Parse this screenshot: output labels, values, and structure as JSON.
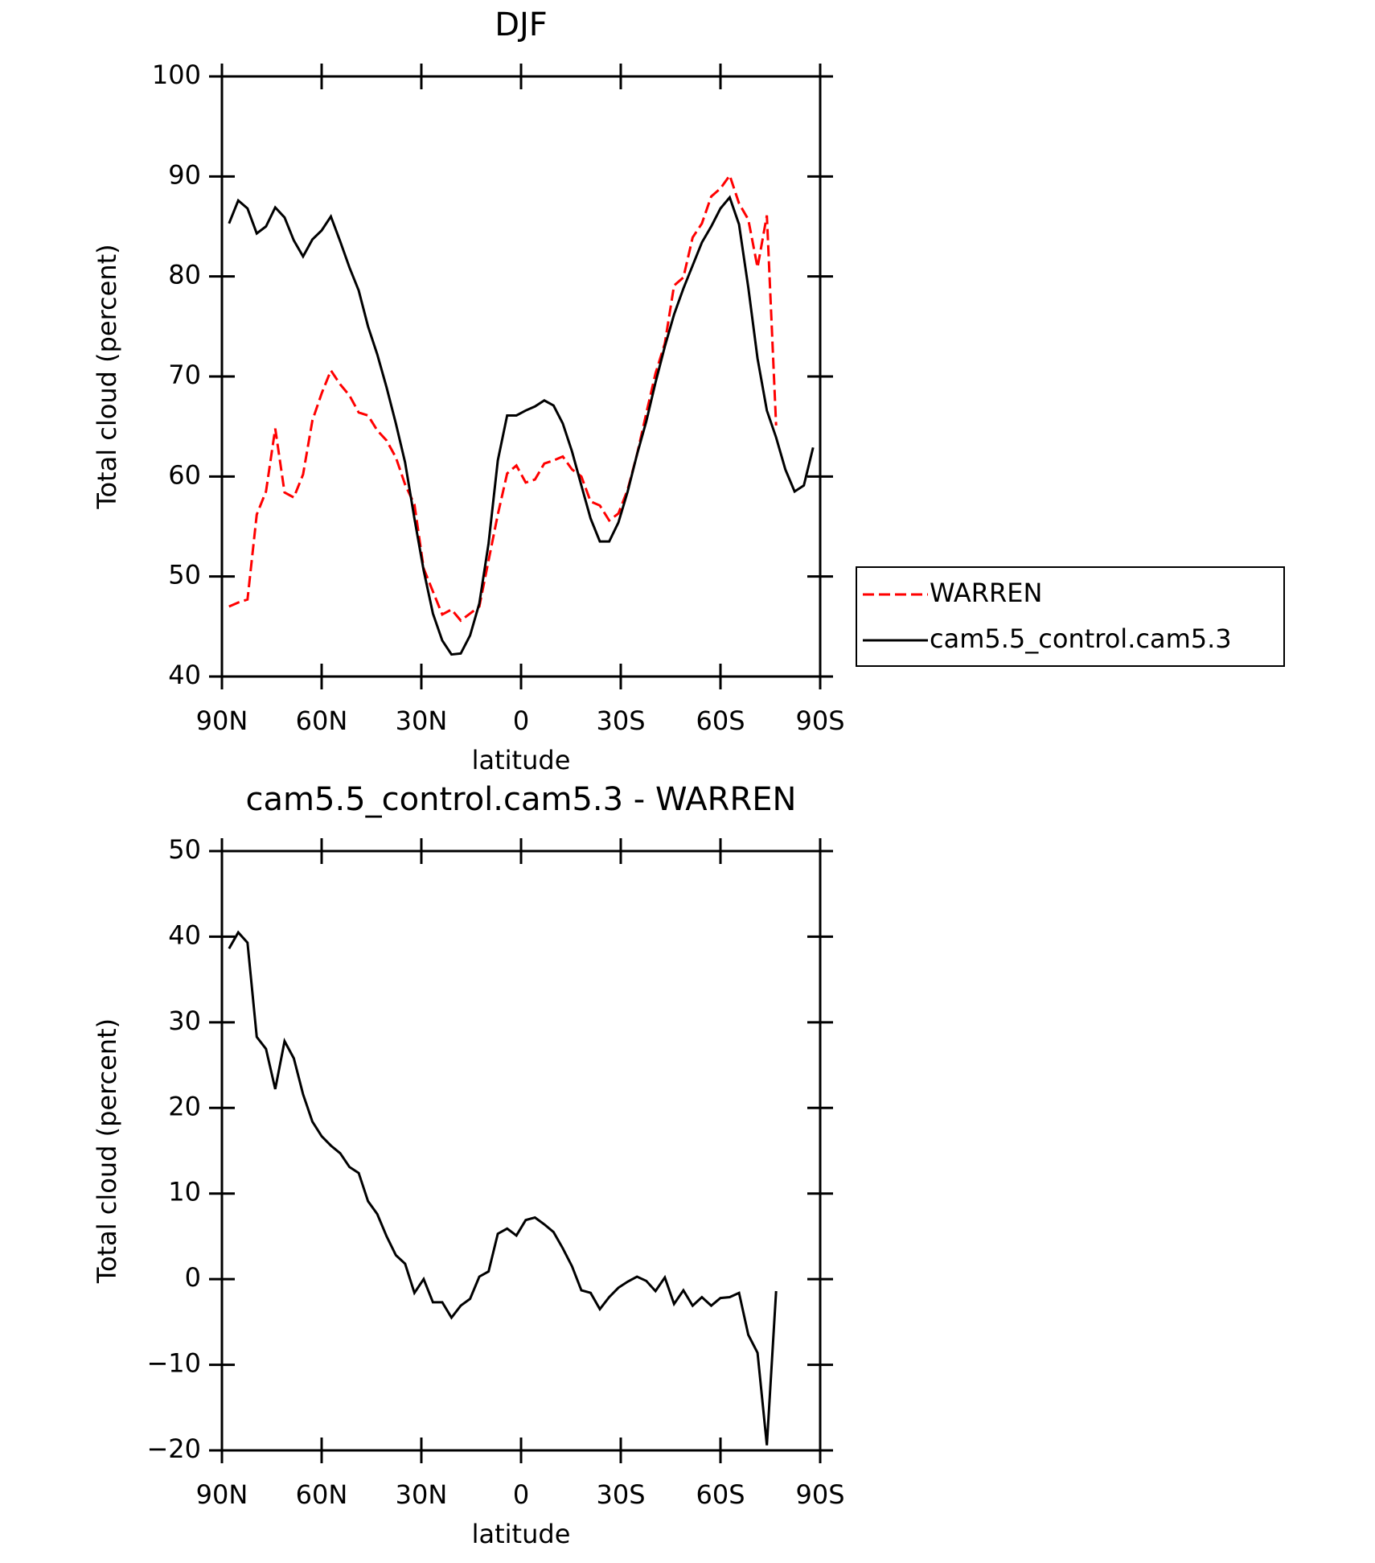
{
  "chart_data": [
    {
      "type": "line",
      "title": "DJF",
      "xlabel": "latitude",
      "ylabel": "Total cloud (percent)",
      "x": [
        87.86,
        85.1,
        82.31,
        79.53,
        76.74,
        73.95,
        71.16,
        68.37,
        65.58,
        62.79,
        60,
        57.21,
        54.42,
        51.63,
        48.84,
        46.04,
        43.25,
        40.46,
        37.67,
        34.88,
        32.09,
        29.3,
        26.51,
        23.72,
        20.93,
        18.14,
        15.35,
        12.56,
        9.77,
        6.98,
        4.19,
        1.4,
        -1.4,
        -4.19,
        -6.98,
        -9.77,
        -12.56,
        -15.35,
        -18.14,
        -20.93,
        -23.72,
        -26.51,
        -29.3,
        -32.09,
        -34.88,
        -37.67,
        -40.46,
        -43.25,
        -46.04,
        -48.84,
        -51.63,
        -54.42,
        -57.21,
        -60,
        -62.79,
        -65.58,
        -68.37,
        -71.16,
        -73.95,
        -76.74,
        -79.53,
        -82.31,
        -85.1,
        -87.86
      ],
      "xlim": [
        90,
        -90
      ],
      "xticks": [
        {
          "value": 90,
          "label": "90N"
        },
        {
          "value": 60,
          "label": "60N"
        },
        {
          "value": 30,
          "label": "30N"
        },
        0,
        {
          "value": -30,
          "label": "30S"
        },
        {
          "value": -60,
          "label": "60S"
        },
        {
          "value": -90,
          "label": "90S"
        }
      ],
      "ylim": [
        40,
        100
      ],
      "yticks": [
        40,
        50,
        60,
        70,
        80,
        90,
        100
      ],
      "legend": "right",
      "series": [
        {
          "name": "WARREN",
          "color": "#ff0000",
          "linestyle": "dashed",
          "values": [
            47.0,
            47.4,
            47.7,
            56.2,
            58.5,
            64.8,
            58.4,
            57.9,
            60.2,
            65.6,
            68.3,
            70.6,
            69.2,
            68.1,
            66.4,
            66.1,
            64.6,
            63.6,
            61.9,
            59.2,
            57.2,
            50.8,
            48.5,
            46.2,
            46.7,
            45.6,
            46.3,
            47.0,
            51.6,
            56.2,
            60.3,
            61.1,
            59.4,
            59.7,
            61.3,
            61.6,
            62.0,
            60.7,
            60.0,
            57.5,
            57.1,
            55.6,
            56.3,
            58.7,
            62.2,
            66.3,
            70.3,
            73.3,
            79.1,
            79.9,
            83.9,
            85.3,
            88.0,
            88.8,
            90.1,
            87.3,
            85.7,
            80.9,
            86.1,
            65.1,
            null,
            null,
            null,
            null
          ]
        },
        {
          "name": "cam5.5_control.cam5.3",
          "color": "#000000",
          "linestyle": "solid",
          "values": [
            85.3,
            87.6,
            86.8,
            84.3,
            85.0,
            86.9,
            85.9,
            83.6,
            82.0,
            83.7,
            84.6,
            86.0,
            83.5,
            80.9,
            78.6,
            75.0,
            72.2,
            68.9,
            65.3,
            61.4,
            55.8,
            50.6,
            46.3,
            43.6,
            42.2,
            42.3,
            44.1,
            47.3,
            53.3,
            61.6,
            66.1,
            66.1,
            66.6,
            67.0,
            67.6,
            67.1,
            65.3,
            62.5,
            59.1,
            55.8,
            53.5,
            53.5,
            55.4,
            58.5,
            62.2,
            65.5,
            69.4,
            73.0,
            76.2,
            78.8,
            81.1,
            83.4,
            85.0,
            86.8,
            87.9,
            85.2,
            78.9,
            71.8,
            66.6,
            63.9,
            60.7,
            58.5,
            59.1,
            62.9
          ]
        }
      ]
    },
    {
      "type": "line",
      "title": "cam5.5_control.cam5.3 - WARREN",
      "xlabel": "latitude",
      "ylabel": "Total cloud (percent)",
      "x": [
        87.86,
        85.1,
        82.31,
        79.53,
        76.74,
        73.95,
        71.16,
        68.37,
        65.58,
        62.79,
        60,
        57.21,
        54.42,
        51.63,
        48.84,
        46.04,
        43.25,
        40.46,
        37.67,
        34.88,
        32.09,
        29.3,
        26.51,
        23.72,
        20.93,
        18.14,
        15.35,
        12.56,
        9.77,
        6.98,
        4.19,
        1.4,
        -1.4,
        -4.19,
        -6.98,
        -9.77,
        -12.56,
        -15.35,
        -18.14,
        -20.93,
        -23.72,
        -26.51,
        -29.3,
        -32.09,
        -34.88,
        -37.67,
        -40.46,
        -43.25,
        -46.04,
        -48.84,
        -51.63,
        -54.42,
        -57.21,
        -60,
        -62.79,
        -65.58,
        -68.37,
        -71.16,
        -73.95,
        -76.74,
        -79.53,
        -82.31,
        -85.1,
        -87.86
      ],
      "xlim": [
        90,
        -90
      ],
      "xticks": [
        {
          "value": 90,
          "label": "90N"
        },
        {
          "value": 60,
          "label": "60N"
        },
        {
          "value": 30,
          "label": "30N"
        },
        0,
        {
          "value": -30,
          "label": "30S"
        },
        {
          "value": -60,
          "label": "60S"
        },
        {
          "value": -90,
          "label": "90S"
        }
      ],
      "ylim": [
        -20,
        50
      ],
      "yticks": [
        {
          "value": -20,
          "label": "−20"
        },
        {
          "value": -10,
          "label": "−10"
        },
        0,
        10,
        20,
        30,
        40,
        50
      ],
      "series": [
        {
          "color": "#000000",
          "linestyle": "solid",
          "values": [
            38.6,
            40.5,
            39.3,
            28.3,
            26.9,
            22.2,
            27.8,
            25.8,
            21.6,
            18.4,
            16.7,
            15.6,
            14.7,
            13.1,
            12.4,
            9.1,
            7.6,
            5.0,
            2.8,
            1.8,
            -1.6,
            0.0,
            -2.7,
            -2.7,
            -4.5,
            -3.1,
            -2.3,
            0.3,
            0.9,
            5.3,
            5.9,
            5.1,
            6.9,
            7.2,
            6.4,
            5.5,
            3.6,
            1.5,
            -1.3,
            -1.6,
            -3.5,
            -2.1,
            -1.0,
            -0.3,
            0.3,
            -0.2,
            -1.4,
            0.2,
            -2.9,
            -1.3,
            -3.1,
            -2.1,
            -3.1,
            -2.2,
            -2.1,
            -1.6,
            -6.5,
            -8.6,
            -19.4,
            -1.4,
            null,
            null,
            null,
            null
          ]
        }
      ]
    }
  ]
}
